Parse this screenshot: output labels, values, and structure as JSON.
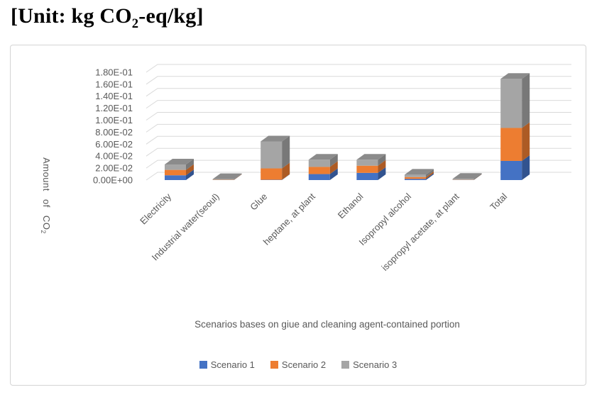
{
  "unit_label": {
    "prefix": "[Unit: kg CO",
    "sub": "2",
    "suffix": "-eq/kg]"
  },
  "chart_data": {
    "type": "bar",
    "stacked": true,
    "style_3d": true,
    "title": "",
    "xlabel": "Scenarios bases on giue and cleaning agent-contained portion",
    "ylabel": "Amount of CO2",
    "ylabel_parts": {
      "prefix": "Amount of CO",
      "sub": "2"
    },
    "categories": [
      "Electricity",
      "Industrial water(seoul)",
      "Glue",
      "heptane, at plant",
      "Ethanol",
      "Isopropyl alcohol",
      "isopropyl acetate, at plant",
      "Total"
    ],
    "series": [
      {
        "name": "Scenario 1",
        "color": "#4472C4",
        "values": [
          0.008,
          0.0002,
          0.0005,
          0.01,
          0.012,
          0.002,
          0.0002,
          0.032
        ]
      },
      {
        "name": "Scenario 2",
        "color": "#ED7D31",
        "values": [
          0.009,
          0.0004,
          0.019,
          0.012,
          0.012,
          0.003,
          0.0003,
          0.055
        ]
      },
      {
        "name": "Scenario 3",
        "color": "#A5A5A5",
        "values": [
          0.009,
          0.001,
          0.045,
          0.012,
          0.01,
          0.004,
          0.0015,
          0.082
        ]
      }
    ],
    "ylim": [
      0,
      0.18
    ],
    "ytick_step": 0.02,
    "ytick_labels": [
      "0.00E+00",
      "2.00E-02",
      "4.00E-02",
      "6.00E-02",
      "8.00E-02",
      "1.00E-01",
      "1.20E-01",
      "1.40E-01",
      "1.60E-01",
      "1.80E-01"
    ],
    "grid": true,
    "legend_position": "bottom",
    "gridline_color": "#D9D9D9",
    "text_color": "#595959"
  }
}
